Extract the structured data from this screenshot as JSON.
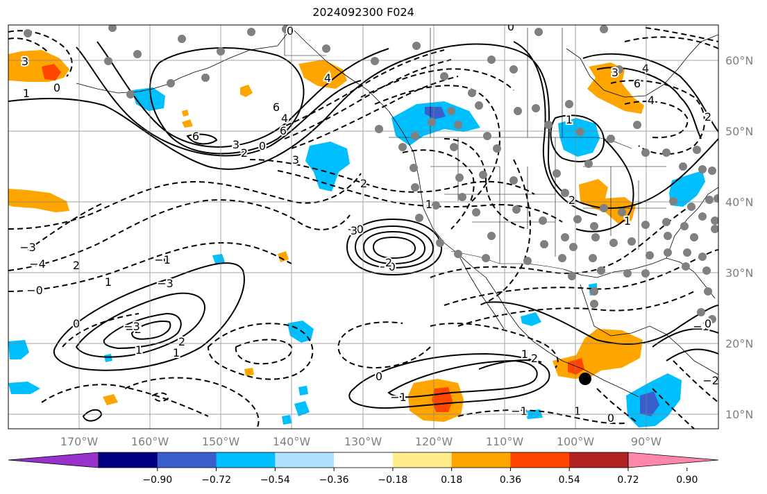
{
  "title": "2024092300 F024",
  "lat_labels": [
    "60°N",
    "50°N",
    "40°N",
    "30°N",
    "20°N",
    "10°N"
  ],
  "lon_labels": [
    "170°W",
    "160°W",
    "150°W",
    "140°W",
    "130°W",
    "120°W",
    "110°W",
    "100°W",
    "90°W"
  ],
  "colorbar": {
    "ticks": [
      "−0.90",
      "−0.72",
      "−0.54",
      "−0.36",
      "−0.18",
      "0.18",
      "0.36",
      "0.54",
      "0.72",
      "0.90"
    ],
    "colors": [
      "#9932cc",
      "#000080",
      "#3a5fcd",
      "#00bfff",
      "#b0e2ff",
      "#ffffff",
      "#ffec8b",
      "#ffa500",
      "#ff4500",
      "#b22222",
      "#ff88aa"
    ]
  },
  "fill_colors": {
    "neg_light": "#00bfff",
    "neg_mid": "#3a5fcd",
    "pos_light": "#ffa500",
    "pos_strong": "#ff4500"
  },
  "contour_labels": [
    "0",
    "3",
    "1",
    "0",
    "6",
    "4",
    "6",
    "2",
    "3",
    "0",
    "6",
    "4",
    "3",
    "2",
    "0",
    "−3",
    "4",
    "6",
    "3",
    "4",
    "2",
    "1",
    "0",
    "−3",
    "−2",
    "−4",
    "−0",
    "−1",
    "2",
    "1",
    "0",
    "−3",
    "1",
    "1",
    "2",
    "0",
    "−1",
    "−1",
    "1",
    "2",
    "1",
    "0",
    "−2",
    "−1",
    "0",
    "−0",
    "−0",
    "1",
    "2",
    "3",
    "2",
    "1"
  ],
  "station_marker": {
    "color": "#000000"
  },
  "station_dots": {
    "color": "#808080"
  }
}
